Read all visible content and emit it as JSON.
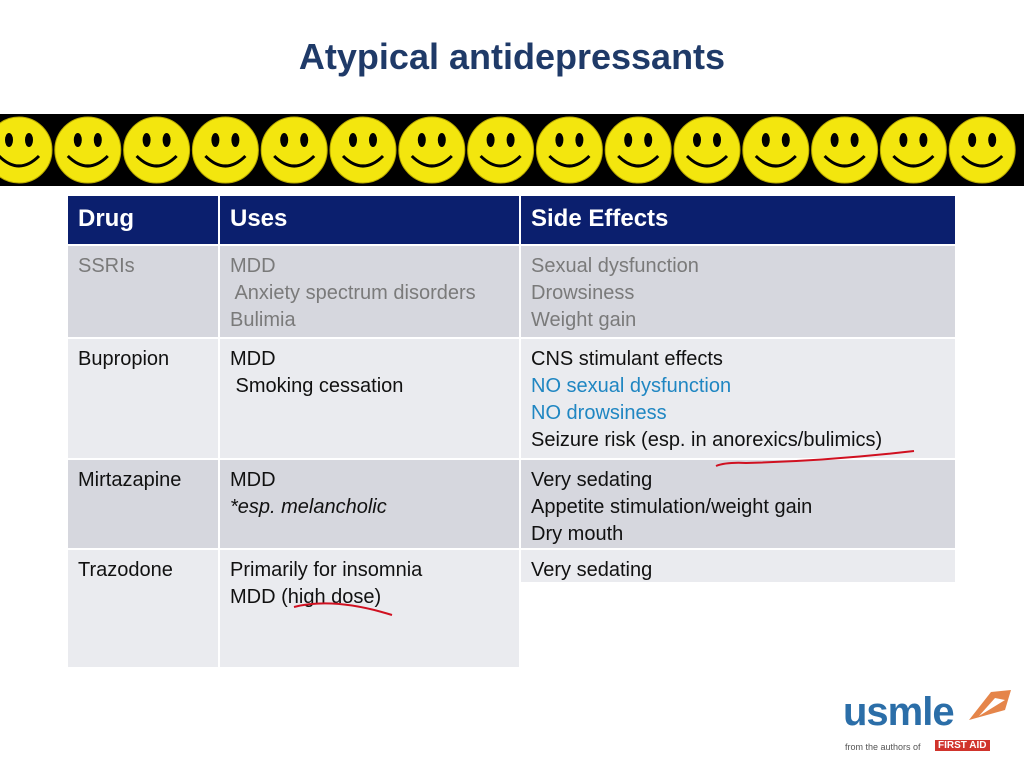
{
  "title": "Atypical antidepressants",
  "table": {
    "header": [
      "Drug",
      "Uses",
      "Side Effects"
    ],
    "rows": [
      [
        [
          "SSRIs"
        ],
        [
          "MDD",
          " Anxiety spectrum disorders",
          "Bulimia"
        ],
        [
          "Sexual dysfunction",
          "Drowsiness",
          "Weight gain"
        ]
      ],
      [
        [
          "Bupropion"
        ],
        [
          "MDD",
          " Smoking cessation"
        ],
        [
          "CNS stimulant effects",
          "NO sexual dysfunction",
          "NO drowsiness",
          "Seizure risk (esp. in anorexics/bulimics)"
        ]
      ],
      [
        [
          "Mirtazapine"
        ],
        [
          "MDD",
          "*esp. melancholic"
        ],
        [
          "Very sedating",
          "Appetite stimulation/weight gain",
          "Dry mouth"
        ]
      ],
      [
        [
          "Trazodone"
        ],
        [
          "Primarily for insomnia",
          "MDD (high dose)"
        ],
        [
          "Very sedating"
        ]
      ]
    ]
  },
  "logo": {
    "name": "usmle",
    "tagline": "from the authors of",
    "brand": "FIRST AID"
  }
}
